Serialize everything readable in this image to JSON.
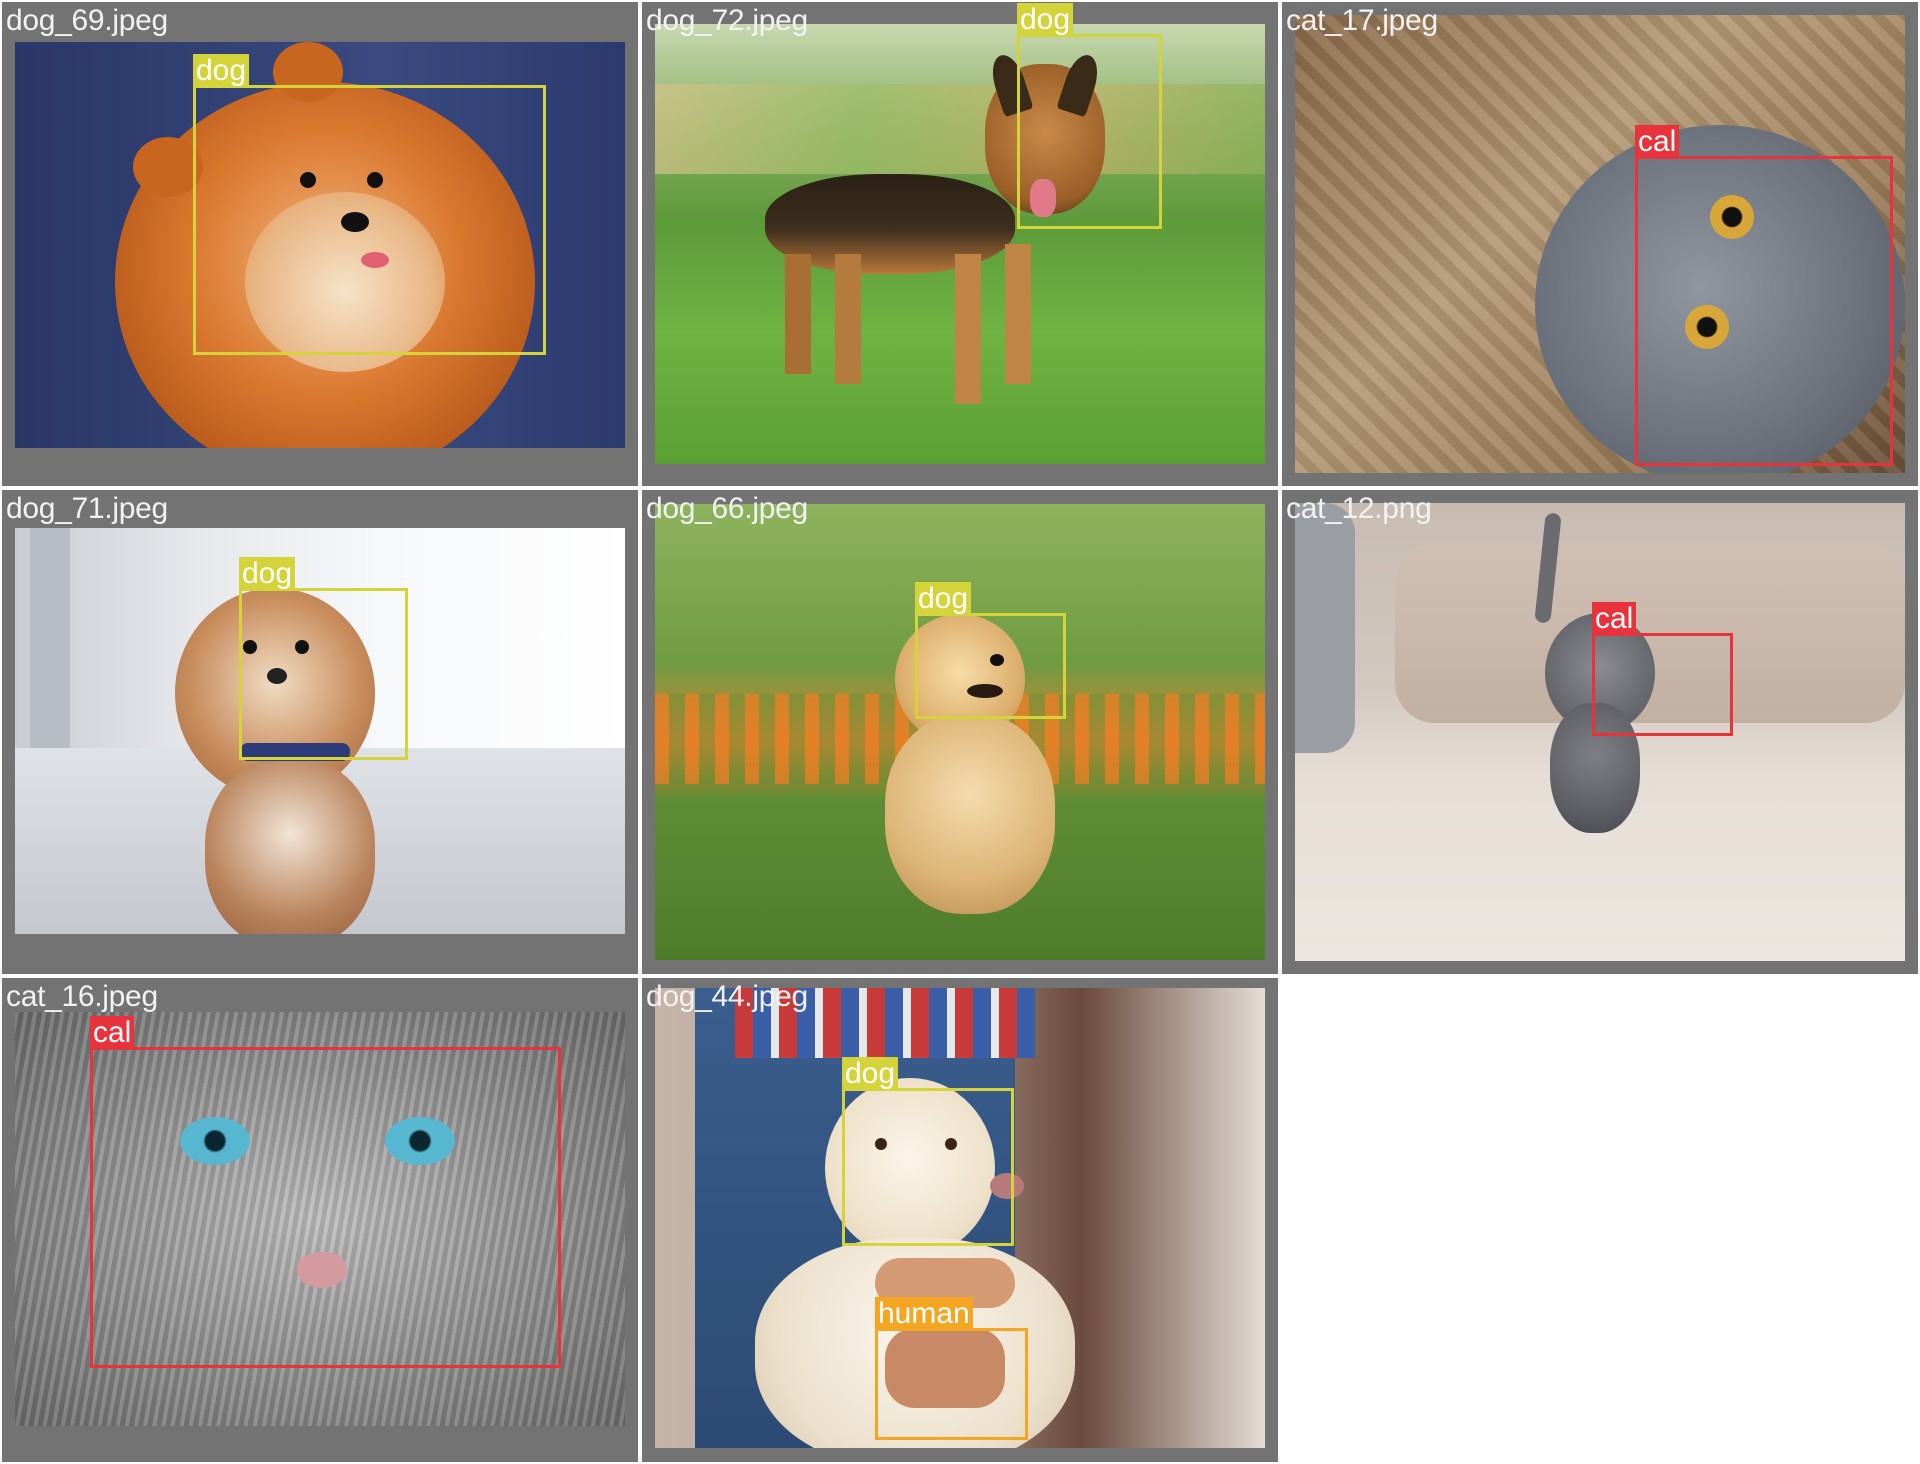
{
  "colors": {
    "dog": "#d4d33a",
    "cat": "#e8323c",
    "human": "#f4a623",
    "frame": "#737373"
  },
  "tiles": [
    {
      "filename": "dog_69.jpeg",
      "scene": "pomeranian",
      "labels": [
        {
          "text": "dog",
          "class": "dog"
        }
      ]
    },
    {
      "filename": "dog_72.jpeg",
      "scene": "german-shepherd",
      "labels": [
        {
          "text": "dog",
          "class": "dog"
        }
      ]
    },
    {
      "filename": "cat_17.jpeg",
      "scene": "grey-cat-basket",
      "labels": [
        {
          "text": "cal",
          "class": "cat"
        }
      ]
    },
    {
      "filename": "dog_71.jpeg",
      "scene": "poodle-mix",
      "labels": [
        {
          "text": "dog",
          "class": "dog"
        }
      ]
    },
    {
      "filename": "dog_66.jpeg",
      "scene": "golden-puppy",
      "labels": [
        {
          "text": "dog",
          "class": "dog"
        }
      ]
    },
    {
      "filename": "cat_12.png",
      "scene": "grey-kitten",
      "labels": [
        {
          "text": "cal",
          "class": "cat"
        }
      ]
    },
    {
      "filename": "cat_16.jpeg",
      "scene": "tabby-closeup",
      "labels": [
        {
          "text": "cal",
          "class": "cat"
        }
      ]
    },
    {
      "filename": "dog_44.jpeg",
      "scene": "labrador-with-person",
      "labels": [
        {
          "text": "dog",
          "class": "dog"
        },
        {
          "text": "human",
          "class": "human"
        }
      ]
    }
  ]
}
